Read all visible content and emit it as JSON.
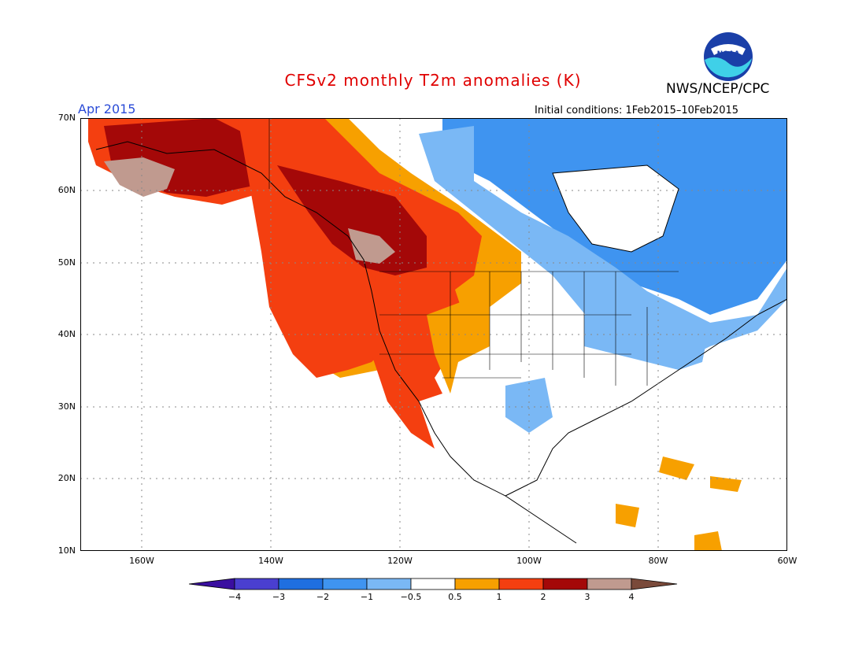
{
  "title": "CFSv2 monthly T2m anomalies (K)",
  "agency": "NWS/NCEP/CPC",
  "month": "Apr 2015",
  "initial_conditions": "Initial conditions: 1Feb2015–10Feb2015",
  "logo_text": "NOAA",
  "lat_labels": [
    "70N",
    "60N",
    "50N",
    "40N",
    "30N",
    "20N",
    "10N"
  ],
  "lon_labels": [
    "160W",
    "140W",
    "120W",
    "100W",
    "80W",
    "60W"
  ],
  "colorbar": {
    "ticks": [
      "−4",
      "−3",
      "−2",
      "−1",
      "−0.5",
      "0.5",
      "1",
      "2",
      "3",
      "4"
    ],
    "colors": [
      "#3a0fa0",
      "#4a3fd0",
      "#1f6fe0",
      "#3f94f0",
      "#7ab8f5",
      "#ffffff",
      "#f7a000",
      "#f43f10",
      "#a40808",
      "#c09a8f",
      "#7a4a3a"
    ]
  },
  "anomaly_regions": [
    {
      "name": "alaska-warm",
      "color": "#a40808"
    },
    {
      "name": "west-coast-warm",
      "color": "#f43f10"
    },
    {
      "name": "rockies-warm-margin",
      "color": "#f7a000"
    },
    {
      "name": "canada-cold",
      "color": "#3f94f0"
    },
    {
      "name": "northeast-cool",
      "color": "#7ab8f5"
    },
    {
      "name": "caribbean-warm",
      "color": "#f7a000"
    }
  ]
}
